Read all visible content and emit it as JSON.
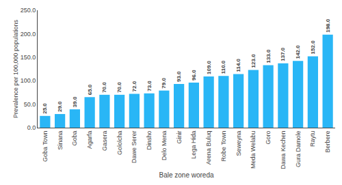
{
  "chart_data": {
    "type": "bar",
    "xlabel": "Bale zone woreda",
    "ylabel": "Prevalence per 100,000 populations",
    "categories": [
      "Goba Town",
      "Sinana",
      "Goba",
      "Agarfa",
      "Gasera",
      "Gololcha",
      "Dawe Serer",
      "Dinsho",
      "Delo Mena",
      "Ginir",
      "Lega Hida",
      "Arena Buluq",
      "Robe Town",
      "Seweyna",
      "Meda Welabu",
      "Goro",
      "Dawa Kechen",
      "Gura Damole",
      "Raytu",
      "Berbere"
    ],
    "values": [
      25.0,
      29.0,
      39.0,
      65.0,
      70.0,
      70.0,
      72.0,
      73.0,
      79.0,
      93.0,
      96.0,
      109.0,
      110.0,
      114.0,
      123.0,
      133.0,
      137.0,
      142.0,
      152.0,
      198.0
    ],
    "value_labels": [
      "25.0",
      "29.0",
      "39.0",
      "65.0",
      "70.0",
      "70.0",
      "72.0",
      "73.0",
      "79.0",
      "93.0",
      "96.0",
      "109.0",
      "110.0",
      "114.0",
      "123.0",
      "133.0",
      "137.0",
      "142.0",
      "152.0",
      "198.0"
    ],
    "color": "#29b6f6",
    "ylim": [
      0,
      250
    ],
    "yticks": [
      {
        "value": 0,
        "label": "0.0"
      },
      {
        "value": 50,
        "label": "50.0"
      },
      {
        "value": 100,
        "label": "100.0"
      },
      {
        "value": 150,
        "label": "150.0"
      },
      {
        "value": 200,
        "label": "200.0"
      },
      {
        "value": 250,
        "label": "250.0"
      }
    ],
    "data_labels": true,
    "grid": false
  }
}
